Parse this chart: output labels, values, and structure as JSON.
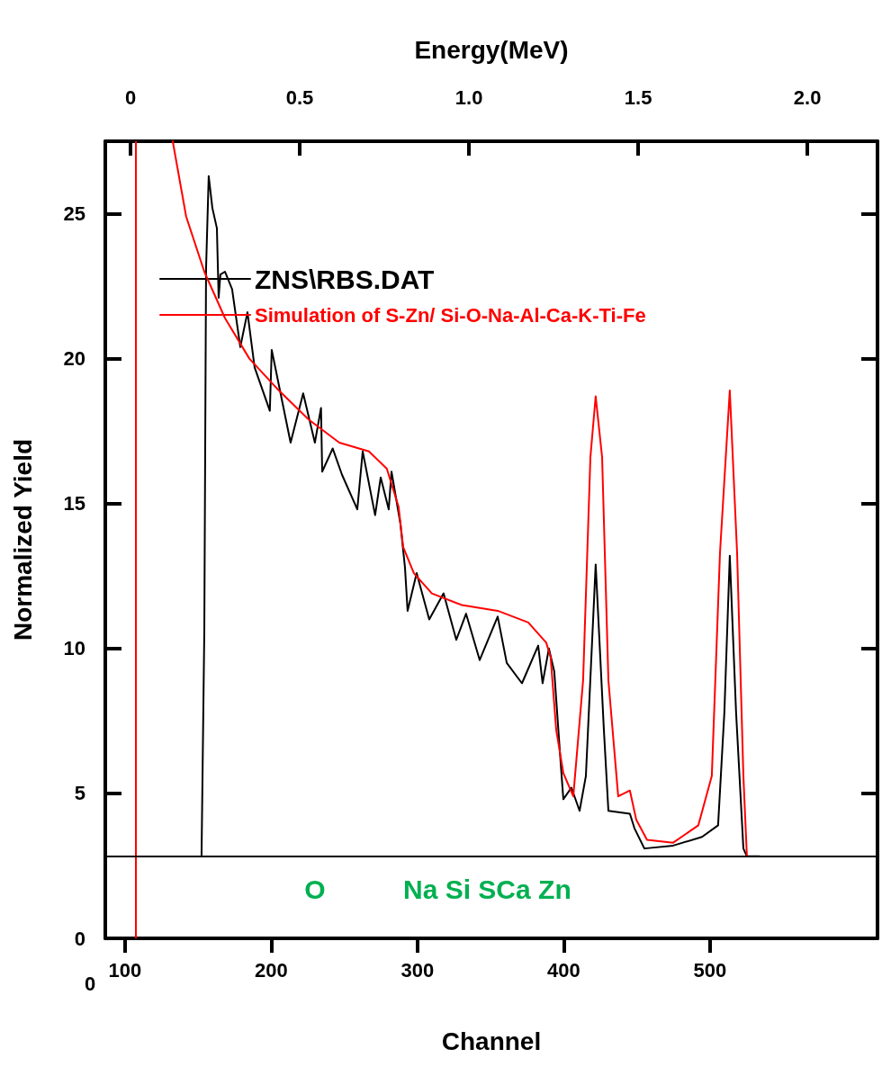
{
  "chart_data": {
    "type": "line",
    "xlabel": "Channel",
    "ylabel": "Normalized Yield",
    "x2label": "Energy(MeV)",
    "xlim": [
      86.5,
      614.5
    ],
    "xticks": [
      100,
      200,
      300,
      400,
      500
    ],
    "x2lim": [
      -0.0745,
      2.207
    ],
    "x2ticks": [
      0,
      0.5,
      {
        "value": 1,
        "label": "1.0"
      },
      1.5,
      {
        "value": 2,
        "label": "2.0"
      }
    ],
    "ylim": [
      0,
      27.5
    ],
    "yticks": [
      0,
      5,
      10,
      15,
      20,
      25
    ],
    "grid": false,
    "legend": "top left",
    "marker": "none",
    "line_style": "solid",
    "series": [
      {
        "name": "ZNS\\RBS.DAT",
        "color": "#000000",
        "x": [
          152.3,
          154.2,
          155.4,
          157.2,
          159.7,
          162.8,
          164,
          165.2,
          168.3,
          173.2,
          178.8,
          183.7,
          188.6,
          199,
          200.3,
          213.2,
          221.8,
          229.8,
          234,
          234.8,
          242,
          248.3,
          258.8,
          262.5,
          271,
          274.8,
          280.3,
          282.2,
          288.3,
          291.4,
          293.2,
          299.4,
          308,
          317.8,
          326.5,
          333.2,
          342.5,
          354.8,
          361,
          371.4,
          382.5,
          385.5,
          389.8,
          393.5,
          397.8,
          399.7,
          405.2,
          410.8,
          415.1,
          421.8,
          427.4,
          430.5,
          445.2,
          448.3,
          455.1,
          474.8,
          494.5,
          505.5,
          509.8,
          513.5,
          517.8,
          522.8,
          525.2,
          533.8
        ],
        "values": [
          2.83,
          10.6,
          23.1,
          26.3,
          25.2,
          24.5,
          22.1,
          22.9,
          23.0,
          22.4,
          20.4,
          21.6,
          19.7,
          18.2,
          20.3,
          17.1,
          18.8,
          17.1,
          18.3,
          16.1,
          16.9,
          16.0,
          14.8,
          16.8,
          14.6,
          15.9,
          14.8,
          16.1,
          14.3,
          12.8,
          11.3,
          12.6,
          11.0,
          11.9,
          10.3,
          11.2,
          9.6,
          11.1,
          9.5,
          8.8,
          10.1,
          8.8,
          10.0,
          9.2,
          6.1,
          4.8,
          5.2,
          4.4,
          5.6,
          12.9,
          7.2,
          4.4,
          4.3,
          3.8,
          3.1,
          3.2,
          3.5,
          3.9,
          7.8,
          13.2,
          7.8,
          3.1,
          2.83,
          2.83
        ]
      },
      {
        "name": "Simulation of S-Zn/ Si-O-Na-Al-Ca-K-Ti-Fe",
        "color": "#ff0000",
        "x": [
          132.6,
          141.8,
          154.2,
          168.3,
          185,
          205.2,
          225.5,
          246.5,
          266.8,
          279,
          287,
          290.2,
          297.5,
          309.8,
          330.2,
          354.8,
          375.7,
          388,
          391,
          394.8,
          399.7,
          406.5,
          413.2,
          418.2,
          421.8,
          426.2,
          430.5,
          437.2,
          445.2,
          449.5,
          456.9,
          474.8,
          492,
          501.2,
          506.8,
          513.5,
          518.5,
          522.8,
          525.2
        ],
        "values": [
          27.5,
          24.9,
          23.0,
          21.4,
          20.0,
          18.9,
          17.9,
          17.1,
          16.8,
          16.2,
          14.9,
          13.5,
          12.6,
          11.9,
          11.5,
          11.3,
          10.9,
          10.2,
          9.7,
          7.2,
          5.7,
          4.9,
          8.9,
          16.6,
          18.7,
          16.6,
          8.9,
          4.9,
          5.1,
          4.1,
          3.4,
          3.3,
          3.9,
          5.6,
          13.3,
          18.9,
          13.3,
          5.6,
          2.83
        ]
      }
    ],
    "ref_lines": [
      {
        "axis": "x",
        "value": 107,
        "color": "#ff0000"
      },
      {
        "axis": "y",
        "value": 2.83,
        "color": "#000000"
      }
    ],
    "annotations": [
      "O",
      "Na Si SCa Zn",
      "0"
    ]
  }
}
